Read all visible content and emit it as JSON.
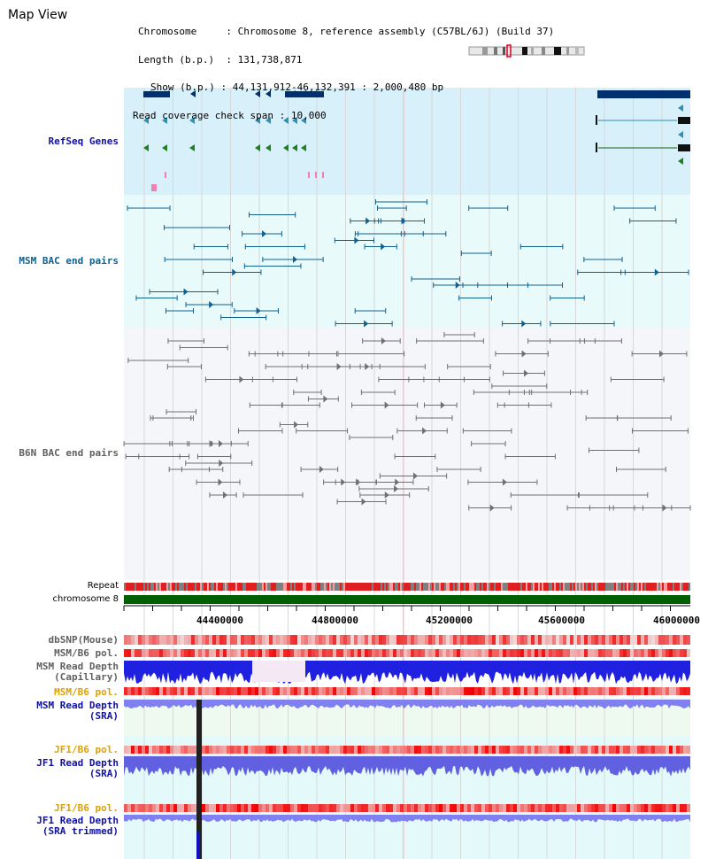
{
  "page": {
    "title": "Map View"
  },
  "info": {
    "chromosome_label": "Chromosome",
    "chromosome_value": "Chromosome 8, reference assembly (C57BL/6J) (Build 37)",
    "length_label": "Length (b.p.)",
    "length_value": "131,738,871",
    "show_label": "Show (b.p.)",
    "show_value": "44,131,912-46,132,391 : 2,000,480 bp",
    "coverage_label": "Read coverage check span",
    "coverage_value": "10,000"
  },
  "tracks": {
    "refseq": "RefSeq Genes",
    "msm_bac": "MSM BAC end pairs",
    "b6n_bac": "B6N BAC end pairs",
    "repeat": "Repeat",
    "chromosome": "chromosome 8",
    "dbsnp": "dbSNP(Mouse)",
    "msm_b6_pol_1": "MSM/B6 pol.",
    "msm_depth_cap_1": "MSM Read Depth",
    "msm_depth_cap_2": "(Capillary)",
    "msm_b6_pol_2": "MSM/B6 pol.",
    "msm_depth_sra_1": "MSM Read Depth",
    "msm_depth_sra_2": "(SRA)",
    "jf1_b6_pol_1": "JF1/B6 pol.",
    "jf1_depth_sra_1": "JF1 Read Depth",
    "jf1_depth_sra_2": "(SRA)",
    "jf1_b6_pol_2": "JF1/B6 pol.",
    "jf1_depth_trim_1": "JF1 Read Depth",
    "jf1_depth_trim_2": "(SRA trimmed)"
  },
  "axis": {
    "ticks": [
      "44400000",
      "44800000",
      "45200000",
      "45600000",
      "46000000"
    ]
  },
  "colors": {
    "refseq_bg": "#d8f0fa",
    "msm_bg": "#e8fafa",
    "b6n_bg": "#f4f6fa",
    "gene_dark": "#003070",
    "gene_teal": "#3090b0",
    "gene_green": "#208020",
    "chromosome": "#006000",
    "depth_blue": "#2020e0",
    "depth_lavender": "#8080f0",
    "pol_red": "#f04040",
    "mark_pink": "#f080b0"
  }
}
